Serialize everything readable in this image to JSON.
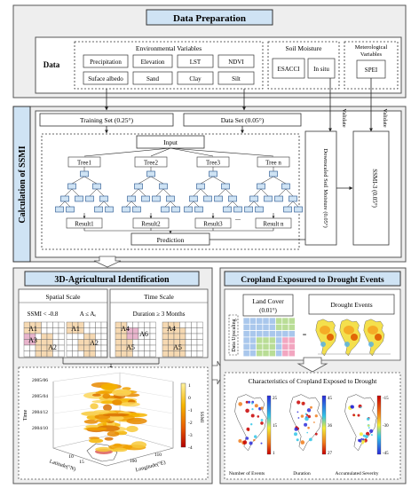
{
  "section1": {
    "title": "Data Preparation",
    "data_label": "Data",
    "env_title": "Environmental Variables",
    "env_items": [
      "Precipitation",
      "Elevation",
      "LST",
      "NDVI",
      "Suface albedo",
      "Sand",
      "Clay",
      "Silt"
    ],
    "soil_title": "Soil Moisture",
    "soil_items": [
      "ESACCI",
      "In situ"
    ],
    "met_title_1": "Meterological",
    "met_title_2": "Variables",
    "met_items": [
      "SPEI"
    ]
  },
  "section2": {
    "title": "Calculation of SSMI",
    "training_set": "Training Set (0.25°)",
    "data_set": "Data Set (0.05°)",
    "input": "Input",
    "trees": [
      "Tree1",
      "Tree2",
      "Tree3",
      "Tree n"
    ],
    "results": [
      "Result1",
      "Result2",
      "Result3",
      "Result n"
    ],
    "ellipsis": "...",
    "prediction": "Prediction",
    "validate_1": "Validate",
    "validate_2": "Validate",
    "downscaled": "Downscaled Soil Moisture (0.05°)",
    "ssmi": "SSMI-3 (0.05°)"
  },
  "section3": {
    "title": "3D-Agricultural Identification",
    "spatial_title": "Spatial Scale",
    "time_title": "Time Scale",
    "ssmi_cond": "SSMI < -0.8",
    "area_cond": "A ≤ Aₑ",
    "duration_cond": "Duration ≥ 3 Months",
    "spatial_cells": [
      "A1",
      "A3",
      "A2",
      "A1",
      "A2"
    ],
    "time_cells": [
      "A4",
      "A6",
      "A5",
      "A4",
      "A5"
    ],
    "plot_ticks_time": [
      "2005/06",
      "2005/04",
      "2004/12",
      "2004/10"
    ],
    "plot_time_label": "Time",
    "plot_lat_label": "Latitude(°N)",
    "plot_lon_label": "Longitude(°E)",
    "plot_lat_ticks": [
      "10",
      "15"
    ],
    "plot_lon_ticks": [
      "100",
      "110"
    ],
    "colorbar_ticks": [
      "1",
      "0",
      "-1",
      "-2",
      "-3",
      "-4"
    ],
    "colorbar_label": "SSMI"
  },
  "section4": {
    "title": "Cropland Exposured to Drought Events",
    "land_cover": "Land Cover",
    "land_cover_res": "(0.01°)",
    "drought_events": "Drought Events",
    "upscaling": "Data Upscaling",
    "characteristics": "Characteristics of Cropland Exposed to Drought",
    "map_labels": [
      "Number of Events",
      "Duration",
      "Accumulated Severity"
    ],
    "map1_ticks": [
      "25",
      "15",
      "1"
    ],
    "map2_ticks": [
      "45",
      "36",
      "27"
    ],
    "map3_ticks": [
      "-15",
      "-30",
      "-45"
    ]
  },
  "colors": {
    "header_fill": "#cfe3f4",
    "section_fill": "#eeeeee",
    "cell_orange": "#f6d9b2",
    "cell_pink": "#e8b4cc",
    "drought_orange": "#f5a623",
    "grid_blue": "#a9c7ec",
    "grid_green": "#b9dd96",
    "grid_pink": "#f2a6c0"
  }
}
